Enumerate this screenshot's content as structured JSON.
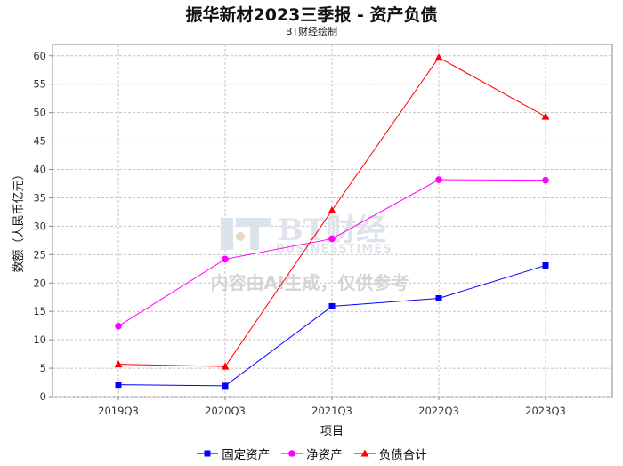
{
  "chart_data": {
    "type": "line",
    "title": "振华新材2023三季报 - 资产负债",
    "subtitle": "BT财经绘制",
    "xlabel": "项目",
    "ylabel": "数额（人民币亿元）",
    "categories": [
      "2019Q3",
      "2020Q3",
      "2021Q3",
      "2022Q3",
      "2023Q3"
    ],
    "ylim": [
      0,
      62
    ],
    "yticks": [
      0,
      5,
      10,
      15,
      20,
      25,
      30,
      35,
      40,
      45,
      50,
      55,
      60
    ],
    "grid": true,
    "legend_position": "bottom",
    "series": [
      {
        "name": "固定资产",
        "color": "#0000ff",
        "marker": "square",
        "values": [
          2.1,
          1.9,
          15.9,
          17.3,
          23.1
        ]
      },
      {
        "name": "净资产",
        "color": "#ff00ff",
        "marker": "circle",
        "values": [
          12.4,
          24.2,
          27.8,
          38.2,
          38.1
        ]
      },
      {
        "name": "负债合计",
        "color": "#ff0000",
        "marker": "triangle",
        "values": [
          5.7,
          5.3,
          32.8,
          59.7,
          49.3
        ]
      }
    ]
  },
  "watermark": {
    "brand": "BT财经",
    "brand_sub": "BUSINESSTIMES",
    "note": "内容由AI生成，仅供参考"
  }
}
